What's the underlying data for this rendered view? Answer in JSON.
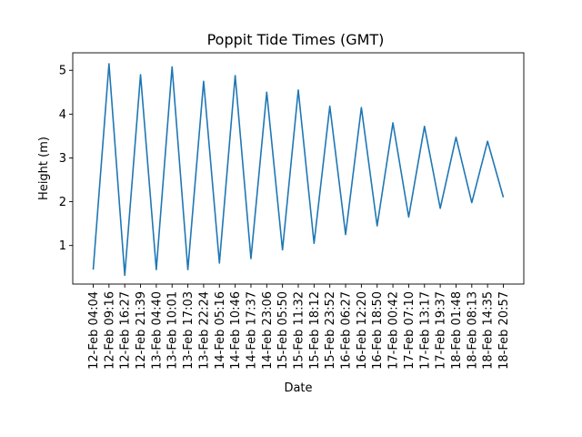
{
  "chart_data": {
    "type": "line",
    "title": "Poppit Tide Times (GMT)",
    "xlabel": "Date",
    "ylabel": "Height (m)",
    "ylim": [
      0.12,
      5.4
    ],
    "yticks": [
      1,
      2,
      3,
      4,
      5
    ],
    "grid": false,
    "color": "#1f77b4",
    "categories": [
      "12-Feb 04:04",
      "12-Feb 09:16",
      "12-Feb 16:27",
      "12-Feb 21:39",
      "13-Feb 04:40",
      "13-Feb 10:01",
      "13-Feb 17:03",
      "13-Feb 22:24",
      "14-Feb 05:16",
      "14-Feb 10:46",
      "14-Feb 17:37",
      "14-Feb 23:06",
      "15-Feb 05:50",
      "15-Feb 11:32",
      "15-Feb 18:12",
      "15-Feb 23:52",
      "16-Feb 06:27",
      "16-Feb 12:20",
      "16-Feb 18:50",
      "17-Feb 00:42",
      "17-Feb 07:10",
      "17-Feb 13:17",
      "17-Feb 19:37",
      "18-Feb 01:48",
      "18-Feb 08:13",
      "18-Feb 14:35",
      "18-Feb 20:57"
    ],
    "values": [
      0.45,
      5.15,
      0.32,
      4.9,
      0.45,
      5.08,
      0.45,
      4.75,
      0.6,
      4.88,
      0.7,
      4.5,
      0.9,
      4.55,
      1.05,
      4.18,
      1.25,
      4.15,
      1.45,
      3.8,
      1.65,
      3.72,
      1.85,
      3.47,
      1.98,
      3.38,
      2.1
    ]
  }
}
